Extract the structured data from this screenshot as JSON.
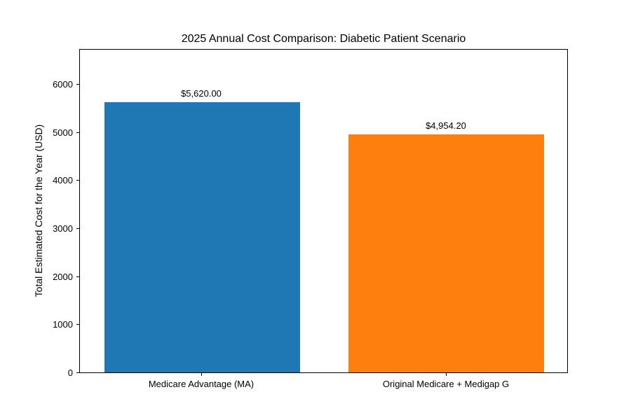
{
  "chart_data": {
    "type": "bar",
    "title": "2025 Annual Cost Comparison: Diabetic Patient Scenario",
    "xlabel": "",
    "ylabel": "Total Estimated Cost for the Year (USD)",
    "categories": [
      "Medicare Advantage (MA)",
      "Original Medicare + Medigap G"
    ],
    "values": [
      5620.0,
      4954.2
    ],
    "bar_labels": [
      "$5,620.00",
      "$4,954.20"
    ],
    "bar_colors": [
      "#1f77b4",
      "#ff7f0e"
    ],
    "yticks": [
      0,
      1000,
      2000,
      3000,
      4000,
      5000,
      6000
    ],
    "ylim": [
      0,
      6744
    ],
    "grid": false,
    "legend": null,
    "background_color": "#ffffff",
    "spine_color": "#000000"
  }
}
